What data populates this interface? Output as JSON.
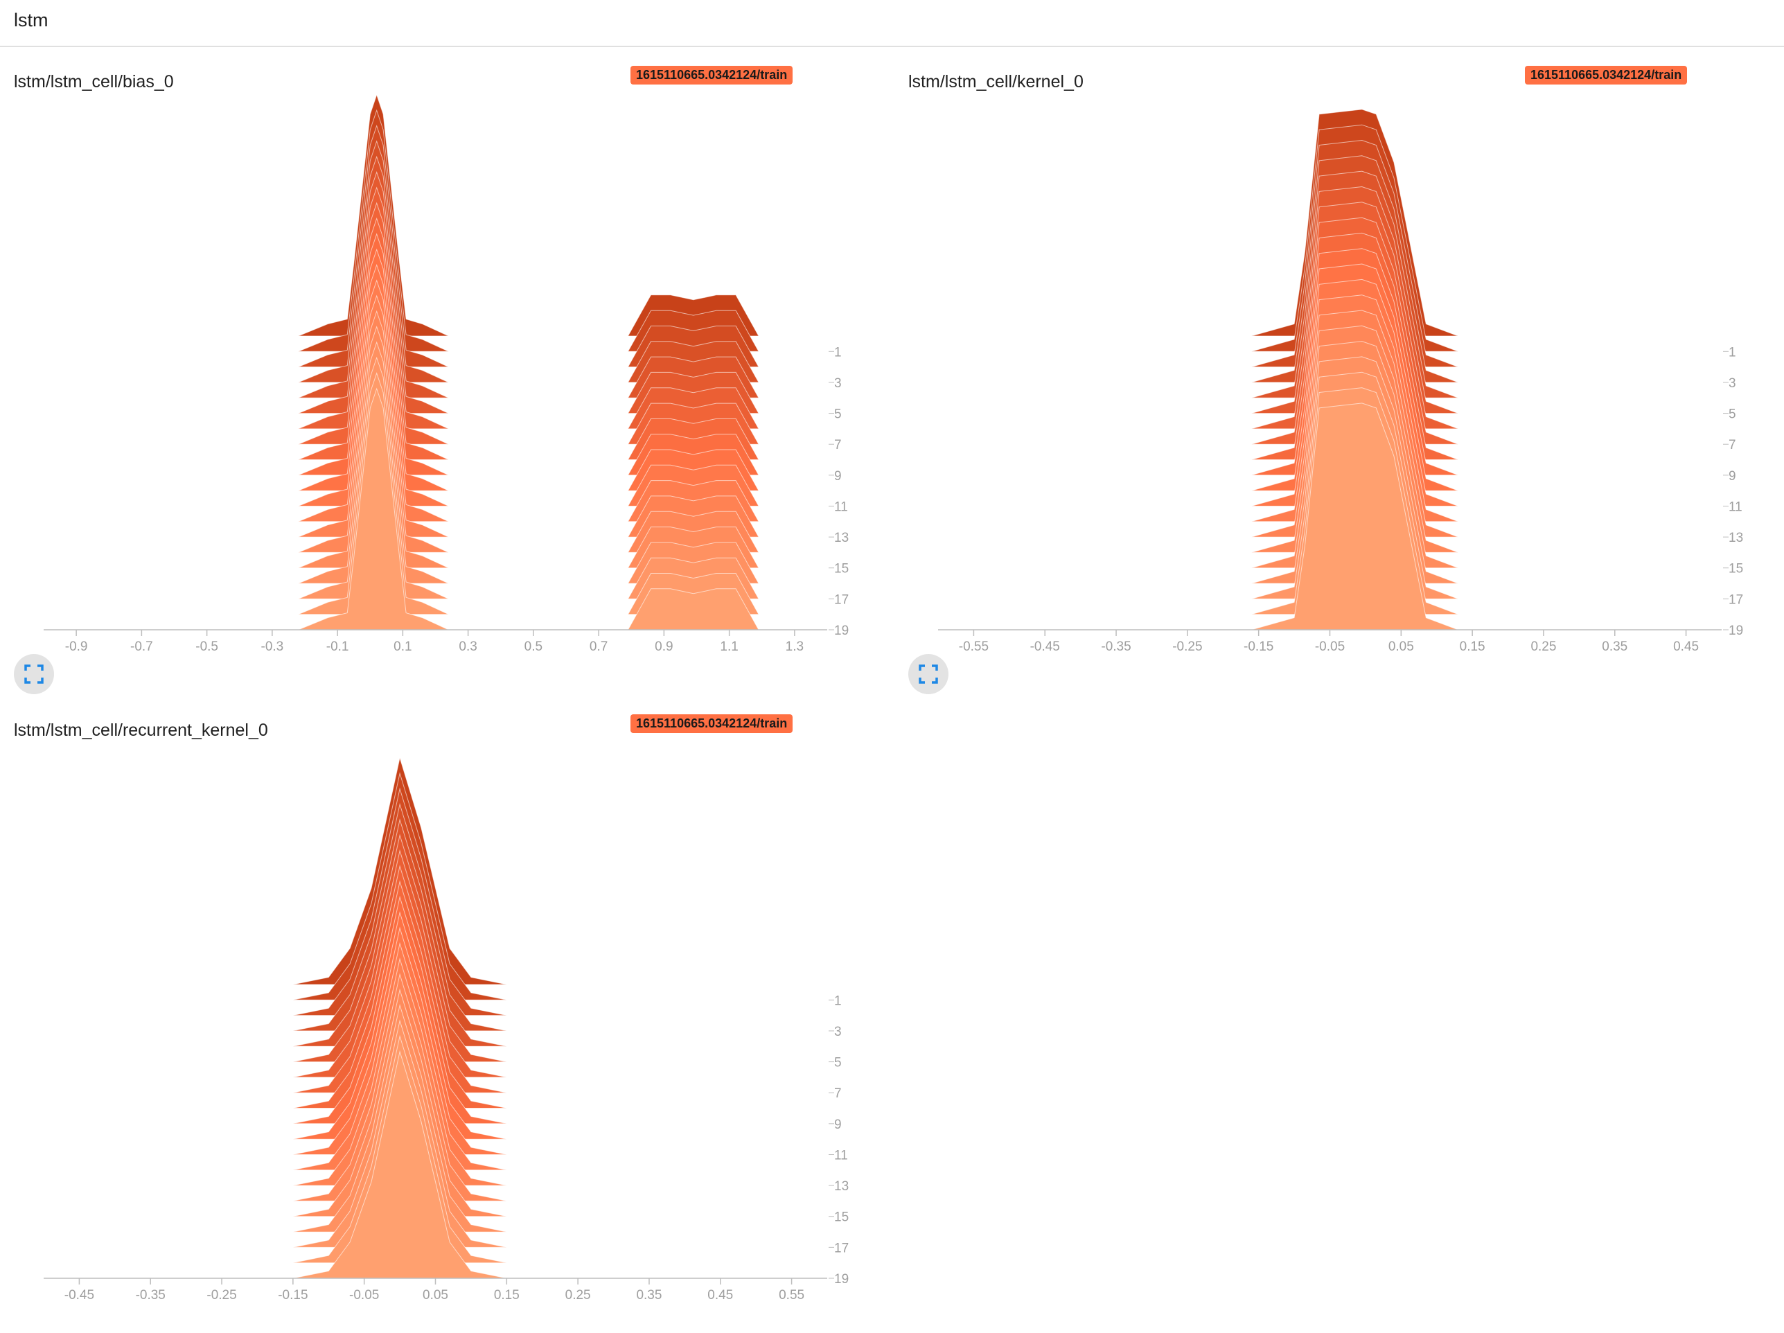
{
  "page": {
    "section_title": "lstm"
  },
  "chart_data": [
    {
      "type": "histogram",
      "title": "lstm/lstm_cell/bias_0",
      "run_label": "1615110665.0342124/train",
      "x_tick_labels": [
        "-0.9",
        "-0.7",
        "-0.5",
        "-0.3",
        "-0.1",
        "0.1",
        "0.3",
        "0.5",
        "0.7",
        "0.9",
        "1.1",
        "1.3"
      ],
      "x_ticks": [
        -0.9,
        -0.7,
        -0.5,
        -0.3,
        -0.1,
        0.1,
        0.3,
        0.5,
        0.7,
        0.9,
        1.1,
        1.3
      ],
      "xlim": [
        -1.0,
        1.4
      ],
      "y_tick_labels": [
        "1",
        "3",
        "5",
        "7",
        "9",
        "11",
        "13",
        "15",
        "17",
        "19"
      ],
      "steps": [
        0,
        19
      ],
      "distribution_profile": [
        [
          -0.22,
          0
        ],
        [
          -0.13,
          0.05
        ],
        [
          -0.07,
          0.07
        ],
        [
          -0.05,
          0.3
        ],
        [
          0.0,
          0.92
        ],
        [
          0.02,
          1.0
        ],
        [
          0.04,
          0.92
        ],
        [
          0.09,
          0.3
        ],
        [
          0.11,
          0.07
        ],
        [
          0.16,
          0.05
        ],
        [
          0.24,
          0
        ],
        [
          0.79,
          0
        ],
        [
          0.86,
          0.17
        ],
        [
          0.92,
          0.17
        ],
        [
          0.99,
          0.15
        ],
        [
          1.06,
          0.17
        ],
        [
          1.12,
          0.17
        ],
        [
          1.19,
          0
        ]
      ]
    },
    {
      "type": "histogram",
      "title": "lstm/lstm_cell/kernel_0",
      "run_label": "1615110665.0342124/train",
      "x_tick_labels": [
        "-0.55",
        "-0.45",
        "-0.35",
        "-0.25",
        "-0.15",
        "-0.05",
        "0.05",
        "0.15",
        "0.25",
        "0.35",
        "0.45"
      ],
      "x_ticks": [
        -0.55,
        -0.45,
        -0.35,
        -0.25,
        -0.15,
        -0.05,
        0.05,
        0.15,
        0.25,
        0.35,
        0.45
      ],
      "xlim": [
        -0.6,
        0.5
      ],
      "y_tick_labels": [
        "1",
        "3",
        "5",
        "7",
        "9",
        "11",
        "13",
        "15",
        "17",
        "19"
      ],
      "steps": [
        0,
        19
      ],
      "distribution_profile": [
        [
          -0.16,
          0
        ],
        [
          -0.1,
          0.05
        ],
        [
          -0.085,
          0.35
        ],
        [
          -0.065,
          0.92
        ],
        [
          -0.005,
          0.94
        ],
        [
          0.015,
          0.92
        ],
        [
          0.04,
          0.72
        ],
        [
          0.085,
          0.05
        ],
        [
          0.13,
          0
        ]
      ]
    },
    {
      "type": "histogram",
      "title": "lstm/lstm_cell/recurrent_kernel_0",
      "run_label": "1615110665.0342124/train",
      "x_tick_labels": [
        "-0.45",
        "-0.35",
        "-0.25",
        "-0.15",
        "-0.05",
        "0.05",
        "0.15",
        "0.25",
        "0.35",
        "0.45",
        "0.55"
      ],
      "x_ticks": [
        -0.45,
        -0.35,
        -0.25,
        -0.15,
        -0.05,
        0.05,
        0.15,
        0.25,
        0.35,
        0.45,
        0.55
      ],
      "xlim": [
        -0.5,
        0.6
      ],
      "y_tick_labels": [
        "1",
        "3",
        "5",
        "7",
        "9",
        "11",
        "13",
        "15",
        "17",
        "19"
      ],
      "steps": [
        0,
        19
      ],
      "distribution_profile": [
        [
          -0.15,
          0
        ],
        [
          -0.1,
          0.03
        ],
        [
          -0.07,
          0.15
        ],
        [
          -0.04,
          0.4
        ],
        [
          0.0,
          0.94
        ],
        [
          0.03,
          0.65
        ],
        [
          0.07,
          0.15
        ],
        [
          0.1,
          0.03
        ],
        [
          0.15,
          0
        ]
      ]
    }
  ],
  "colors": {
    "newest_step": "#ffa06f",
    "mid_step": "#ff7043",
    "oldest_step": "#c84219",
    "badge": "#ff7043",
    "axis": "#bdbdbd",
    "expand_icon": "#1e88e5"
  },
  "icons": {
    "expand": "fullscreen-icon"
  }
}
